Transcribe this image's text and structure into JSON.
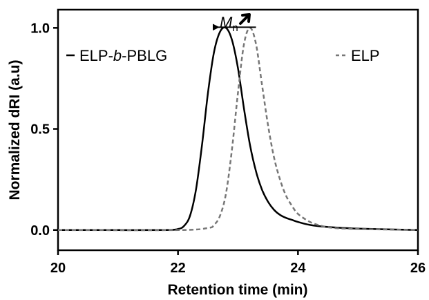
{
  "chart_data": {
    "type": "line",
    "xlabel": "Retention time (min)",
    "ylabel": "Normalized dRI (a.u)",
    "xlim": [
      20,
      26
    ],
    "ylim": [
      -0.1,
      1.09
    ],
    "x_ticks": [
      20,
      22,
      24,
      26
    ],
    "y_ticks": [
      0.0,
      0.5,
      1.0
    ],
    "x_tick_labels": [
      "20",
      "22",
      "24",
      "26"
    ],
    "y_tick_labels": [
      "0.0",
      "0.5",
      "1.0"
    ],
    "grid": false,
    "legend_placement": "inside",
    "series": [
      {
        "name": "ELP-b-PBLG",
        "legend_parts": [
          "ELP-",
          "b",
          "-PBLG"
        ],
        "style": "solid",
        "color": "#000000",
        "x": [
          20.0,
          21.0,
          21.8,
          22.0,
          22.1,
          22.2,
          22.3,
          22.4,
          22.5,
          22.6,
          22.7,
          22.8,
          22.9,
          23.0,
          23.1,
          23.2,
          23.3,
          23.4,
          23.5,
          23.6,
          23.7,
          23.8,
          23.9,
          24.0,
          24.2,
          24.5,
          25.0,
          26.0
        ],
        "y": [
          0.0,
          0.0,
          0.0,
          0.005,
          0.02,
          0.07,
          0.2,
          0.42,
          0.68,
          0.88,
          0.98,
          1.0,
          0.94,
          0.8,
          0.6,
          0.42,
          0.29,
          0.2,
          0.14,
          0.1,
          0.075,
          0.06,
          0.05,
          0.04,
          0.025,
          0.015,
          0.007,
          0.0
        ]
      },
      {
        "name": "ELP",
        "legend_parts": [
          "ELP"
        ],
        "style": "dashed",
        "color": "#777777",
        "x": [
          20.0,
          22.0,
          22.5,
          22.6,
          22.7,
          22.8,
          22.9,
          23.0,
          23.1,
          23.2,
          23.3,
          23.4,
          23.5,
          23.6,
          23.7,
          23.8,
          23.9,
          24.0,
          24.2,
          24.4,
          24.6,
          25.0,
          26.0
        ],
        "y": [
          0.0,
          0.0,
          0.01,
          0.025,
          0.07,
          0.18,
          0.4,
          0.68,
          0.92,
          1.0,
          0.92,
          0.72,
          0.52,
          0.36,
          0.25,
          0.17,
          0.12,
          0.08,
          0.04,
          0.02,
          0.01,
          0.005,
          0.0
        ]
      }
    ],
    "annotation": {
      "text": "M",
      "subscript": "n",
      "arrow_direction": "left",
      "arrow_x": [
        22.6,
        23.3
      ],
      "arrow_y": 1.0
    }
  }
}
